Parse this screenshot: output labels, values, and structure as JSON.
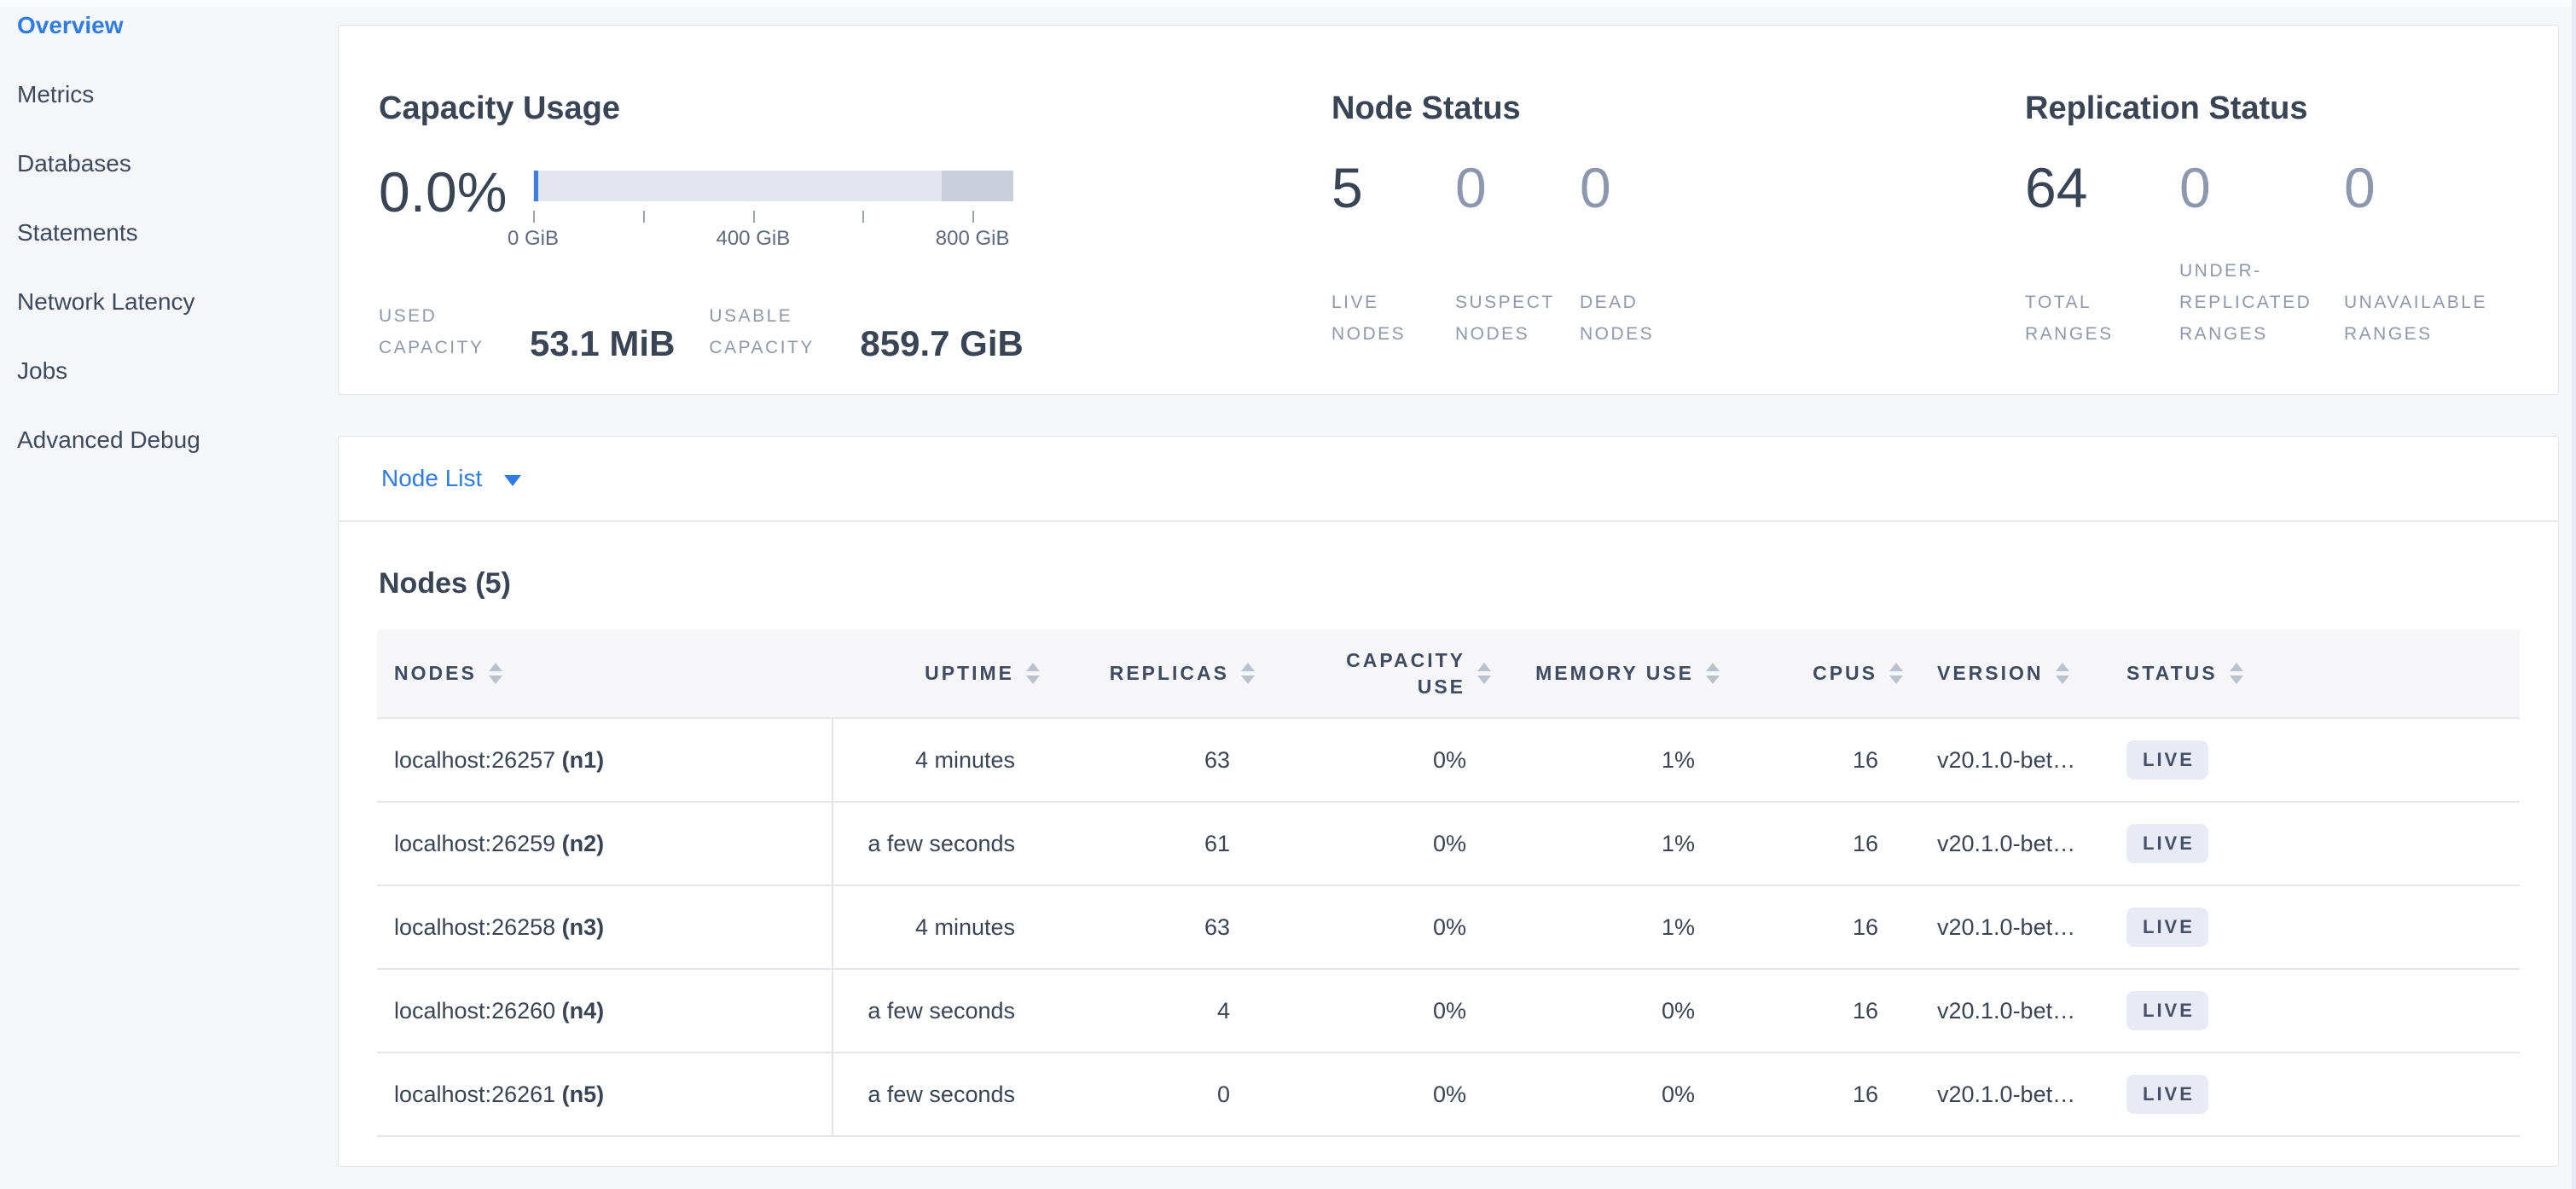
{
  "colors": {
    "accent_blue": "#2f7ce8",
    "text_primary": "#394455",
    "text_muted": "#8f98ab",
    "badge_background": "#e8ebf3",
    "badge_text": "#475069",
    "bar_fill": "#e3e6ee",
    "bar_reserved": "#c9cedb"
  },
  "sidebar": {
    "items": [
      {
        "label": "Overview",
        "active": true
      },
      {
        "label": "Metrics",
        "active": false
      },
      {
        "label": "Databases",
        "active": false
      },
      {
        "label": "Statements",
        "active": false
      },
      {
        "label": "Network Latency",
        "active": false
      },
      {
        "label": "Jobs",
        "active": false
      },
      {
        "label": "Advanced Debug",
        "active": false
      }
    ]
  },
  "summary": {
    "capacity": {
      "title": "Capacity Usage",
      "percent": "0.0%",
      "tick_labels": [
        "0 GiB",
        "400 GiB",
        "800 GiB"
      ],
      "used_label": "USED CAPACITY",
      "used_value": "53.1 MiB",
      "usable_label": "USABLE CAPACITY",
      "usable_value": "859.7 GiB"
    },
    "node_status": {
      "title": "Node Status",
      "stats": [
        {
          "value": "5",
          "label": "LIVE NODES",
          "dim": false
        },
        {
          "value": "0",
          "label": "SUSPECT NODES",
          "dim": true
        },
        {
          "value": "0",
          "label": "DEAD NODES",
          "dim": true
        }
      ]
    },
    "replication": {
      "title": "Replication Status",
      "stats": [
        {
          "value": "64",
          "label": "TOTAL RANGES",
          "dim": false
        },
        {
          "value": "0",
          "label": "UNDER-REPLICATED RANGES",
          "dim": true
        },
        {
          "value": "0",
          "label": "UNAVAILABLE RANGES",
          "dim": true
        }
      ]
    }
  },
  "node_list": {
    "dropdown_label": "Node List",
    "heading": "Nodes (5)"
  },
  "table": {
    "columns": [
      {
        "key": "nodes",
        "label": "NODES",
        "align": "left"
      },
      {
        "key": "uptime",
        "label": "UPTIME",
        "align": "right"
      },
      {
        "key": "replicas",
        "label": "REPLICAS",
        "align": "right"
      },
      {
        "key": "capacity_use",
        "label": "CAPACITY USE",
        "align": "right"
      },
      {
        "key": "memory_use",
        "label": "MEMORY USE",
        "align": "right"
      },
      {
        "key": "cpus",
        "label": "CPUS",
        "align": "right"
      },
      {
        "key": "version",
        "label": "VERSION",
        "align": "left"
      },
      {
        "key": "status",
        "label": "STATUS",
        "align": "left"
      }
    ],
    "rows": [
      {
        "address": "localhost:26257",
        "name": "(n1)",
        "uptime": "4 minutes",
        "replicas": "63",
        "capacity_use": "0%",
        "memory_use": "1%",
        "cpus": "16",
        "version": "v20.1.0-bet…",
        "status": "LIVE"
      },
      {
        "address": "localhost:26259",
        "name": "(n2)",
        "uptime": "a few seconds",
        "replicas": "61",
        "capacity_use": "0%",
        "memory_use": "1%",
        "cpus": "16",
        "version": "v20.1.0-bet…",
        "status": "LIVE"
      },
      {
        "address": "localhost:26258",
        "name": "(n3)",
        "uptime": "4 minutes",
        "replicas": "63",
        "capacity_use": "0%",
        "memory_use": "1%",
        "cpus": "16",
        "version": "v20.1.0-bet…",
        "status": "LIVE"
      },
      {
        "address": "localhost:26260",
        "name": "(n4)",
        "uptime": "a few seconds",
        "replicas": "4",
        "capacity_use": "0%",
        "memory_use": "0%",
        "cpus": "16",
        "version": "v20.1.0-bet…",
        "status": "LIVE"
      },
      {
        "address": "localhost:26261",
        "name": "(n5)",
        "uptime": "a few seconds",
        "replicas": "0",
        "capacity_use": "0%",
        "memory_use": "0%",
        "cpus": "16",
        "version": "v20.1.0-bet…",
        "status": "LIVE"
      }
    ]
  }
}
